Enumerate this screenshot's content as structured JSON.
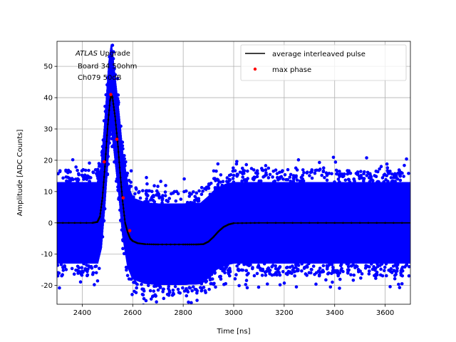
{
  "chart_data": {
    "type": "scatter",
    "title": "",
    "xlabel": "Time [ns]",
    "ylabel": "Amplitude [ADC Counts]",
    "xlim": [
      2300,
      3700
    ],
    "ylim": [
      -26,
      58
    ],
    "xticks": [
      2400,
      2600,
      2800,
      3000,
      3200,
      3400,
      3600
    ],
    "yticks": [
      -20,
      -10,
      0,
      10,
      20,
      30,
      40,
      50
    ],
    "grid": true,
    "legend_position": "top-right",
    "annotation": {
      "line1_italic": "ATLAS",
      "line1_rest": " Upgrade",
      "line2": "Board 34 50ohm",
      "line3": "Ch079 50dB"
    },
    "series": [
      {
        "name": "",
        "kind": "scatter-band",
        "color": "#0000ff",
        "description_points": [
          [
            2300,
            0
          ],
          [
            2460,
            0
          ],
          [
            2475,
            5
          ],
          [
            2490,
            20
          ],
          [
            2505,
            38
          ],
          [
            2515,
            44
          ],
          [
            2530,
            33
          ],
          [
            2545,
            22
          ],
          [
            2560,
            9
          ],
          [
            2580,
            -1
          ],
          [
            2600,
            -5
          ],
          [
            2650,
            -6.5
          ],
          [
            2700,
            -6.8
          ],
          [
            2800,
            -6.8
          ],
          [
            2870,
            -6.6
          ],
          [
            2900,
            -4.5
          ],
          [
            2930,
            -2
          ],
          [
            2970,
            -0.5
          ],
          [
            3000,
            0
          ],
          [
            3700,
            0
          ]
        ],
        "noise_halfwidth": 13
      },
      {
        "name": "average interleaved pulse",
        "kind": "line",
        "color": "#000000",
        "x": [
          2300,
          2440,
          2460,
          2470,
          2480,
          2490,
          2500,
          2510,
          2515,
          2520,
          2530,
          2540,
          2550,
          2560,
          2570,
          2580,
          2590,
          2600,
          2620,
          2650,
          2700,
          2800,
          2850,
          2880,
          2900,
          2920,
          2940,
          2960,
          2980,
          3000,
          3100,
          3300,
          3500,
          3700
        ],
        "y": [
          0,
          0,
          0.3,
          2,
          8,
          18,
          30,
          39,
          41,
          40,
          34,
          26,
          16,
          7,
          0,
          -3,
          -5,
          -5.8,
          -6.5,
          -6.8,
          -6.9,
          -6.9,
          -6.9,
          -6.8,
          -6,
          -4.5,
          -2.7,
          -1.3,
          -0.5,
          -0.1,
          0,
          0,
          0,
          0
        ]
      },
      {
        "name": "max phase",
        "kind": "points",
        "color": "#ff0000",
        "x": [
          2487,
          2513,
          2537,
          2562,
          2588
        ],
        "y": [
          19.5,
          41,
          26.7,
          8,
          -2.5
        ]
      }
    ]
  }
}
